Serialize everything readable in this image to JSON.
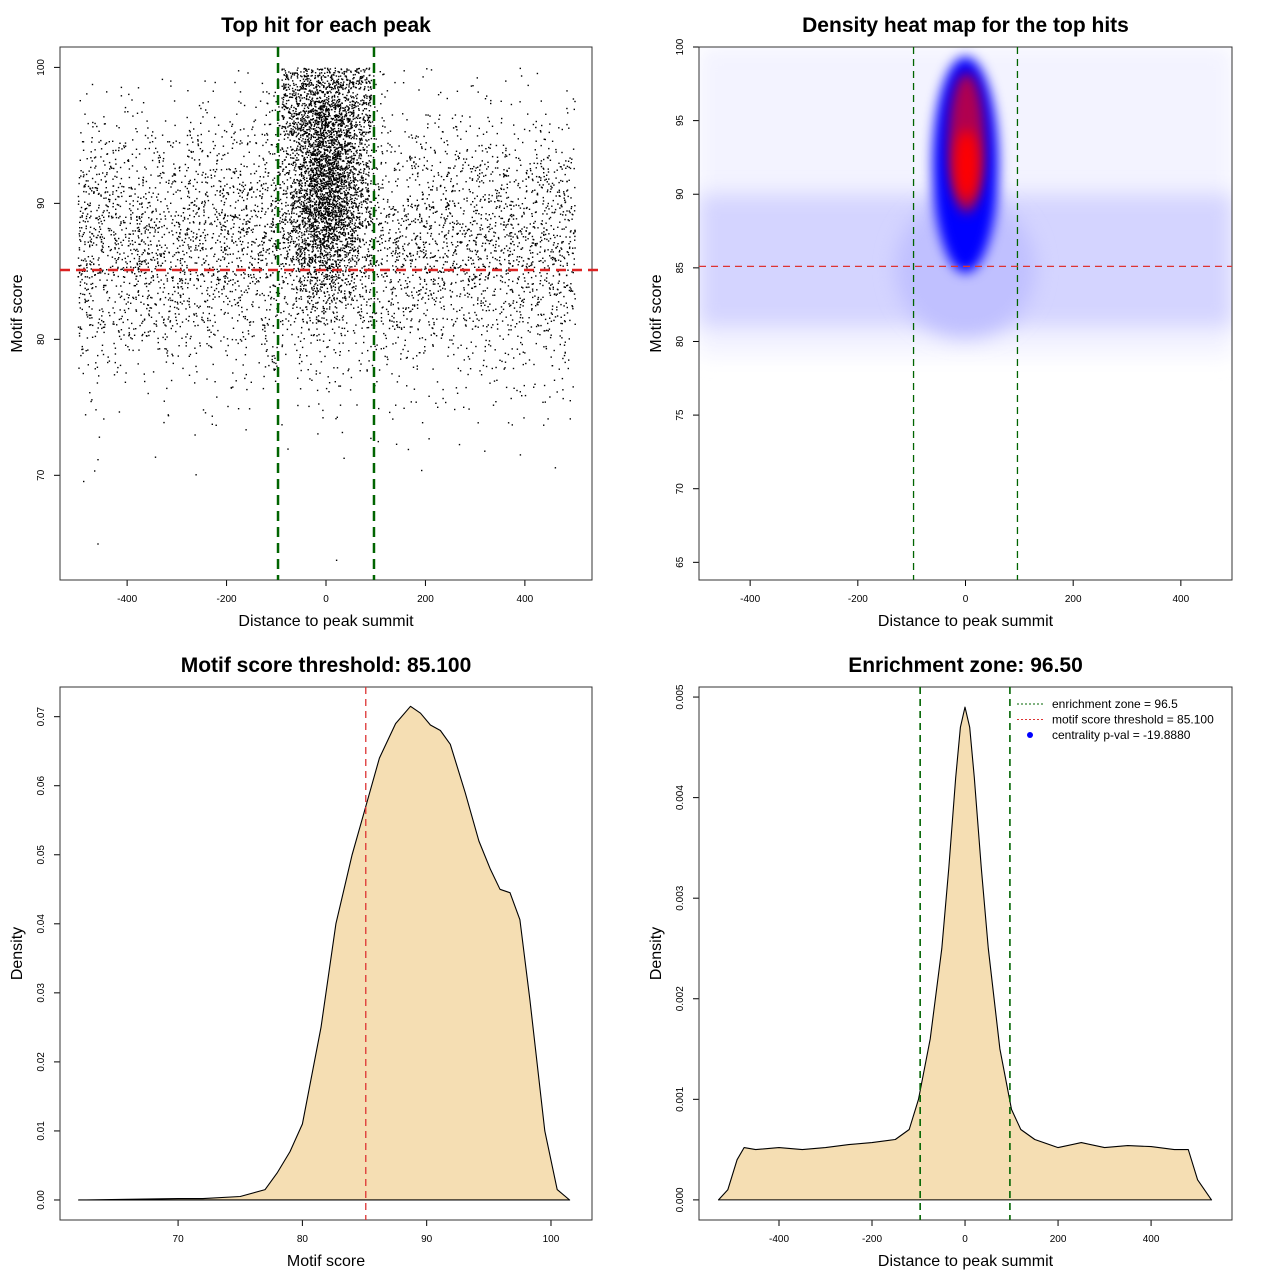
{
  "chart_data": [
    {
      "type": "scatter",
      "title": "Top hit for each peak",
      "xlabel": "Distance to peak summit",
      "ylabel": "Motif score",
      "xlim": [
        -535,
        535
      ],
      "ylim": [
        62.3,
        101.5
      ],
      "xticks": [
        -400,
        -200,
        0,
        200,
        400
      ],
      "yticks": [
        70,
        80,
        90,
        100
      ],
      "vlines": {
        "values": [
          -96.5,
          96.5
        ],
        "color": "#006400",
        "style": "dashed"
      },
      "hline": {
        "value": 85.1,
        "color": "#dd2222",
        "style": "dashed"
      },
      "point_color": "#000000",
      "grid": false
    },
    {
      "type": "heatmap",
      "title": "Density heat map for the top hits",
      "xlabel": "Distance to peak summit",
      "ylabel": "Motif score",
      "xlim": [
        -495,
        495
      ],
      "ylim": [
        63.8,
        100
      ],
      "xticks": [
        -400,
        -200,
        0,
        200,
        400
      ],
      "yticks": [
        65,
        70,
        75,
        80,
        85,
        90,
        95,
        100
      ],
      "vlines": {
        "values": [
          -96.5,
          96.5
        ],
        "color": "#006400",
        "style": "dashed"
      },
      "hline": {
        "value": 85.1,
        "color": "#dd3333",
        "style": "dashed"
      },
      "colors": [
        "#ffffff",
        "#0000ff",
        "#ff0000"
      ],
      "hotspot": {
        "x": 0,
        "y": 92
      },
      "grid": false
    },
    {
      "type": "area",
      "title": "Motif score threshold: 85.100",
      "xlabel": "Motif score",
      "ylabel": "Density",
      "xlim": [
        60.5,
        103.3
      ],
      "ylim": [
        -0.0029,
        0.0743
      ],
      "xticks": [
        70,
        80,
        90,
        100
      ],
      "yticks": [
        "0.00",
        "0.01",
        "0.02",
        "0.03",
        "0.04",
        "0.05",
        "0.06",
        "0.07"
      ],
      "fill": "#f5deb3",
      "vline": {
        "value": 85.1,
        "color": "#dd3333",
        "style": "dashed"
      },
      "x": [
        62,
        66,
        70,
        72,
        75,
        77,
        78,
        79,
        80,
        81.5,
        82.7,
        84,
        85.1,
        86.2,
        87.5,
        88.7,
        89.5,
        90.3,
        91.1,
        91.9,
        93.1,
        94.2,
        95.1,
        95.9,
        96.7,
        97.5,
        98.3,
        99.5,
        100.5,
        101.5
      ],
      "y": [
        0,
        0.0001,
        0.0002,
        0.0002,
        0.0005,
        0.0015,
        0.004,
        0.007,
        0.011,
        0.025,
        0.04,
        0.05,
        0.057,
        0.064,
        0.069,
        0.0715,
        0.0705,
        0.0688,
        0.068,
        0.066,
        0.059,
        0.052,
        0.048,
        0.045,
        0.0445,
        0.0406,
        0.029,
        0.01,
        0.0015,
        0
      ],
      "grid": false
    },
    {
      "type": "area",
      "title": "Enrichment zone: 96.50",
      "xlabel": "Distance to peak summit",
      "ylabel": "Density",
      "xlim": [
        -572,
        574
      ],
      "ylim": [
        -0.0002,
        0.0051
      ],
      "xticks": [
        -400,
        -200,
        0,
        200,
        400
      ],
      "yticks": [
        "0.000",
        "0.001",
        "0.002",
        "0.003",
        "0.004",
        "0.005"
      ],
      "fill": "#f5deb3",
      "vlines": {
        "values": [
          -96.5,
          96.5
        ],
        "color": "#006400",
        "style": "dashed"
      },
      "x": [
        -530,
        -510,
        -490,
        -475,
        -450,
        -400,
        -350,
        -300,
        -250,
        -200,
        -150,
        -120,
        -100,
        -75,
        -50,
        -35,
        -20,
        -10,
        0,
        10,
        20,
        35,
        50,
        75,
        100,
        120,
        150,
        200,
        250,
        300,
        350,
        400,
        450,
        480,
        500,
        530
      ],
      "y": [
        0,
        0.0001,
        0.0004,
        0.00052,
        0.0005,
        0.00052,
        0.0005,
        0.00052,
        0.00055,
        0.00057,
        0.0006,
        0.0007,
        0.001,
        0.0016,
        0.0025,
        0.0033,
        0.0042,
        0.0047,
        0.0049,
        0.0047,
        0.0042,
        0.0033,
        0.0025,
        0.0015,
        0.0009,
        0.0007,
        0.0006,
        0.00052,
        0.00057,
        0.00052,
        0.00054,
        0.00053,
        0.0005,
        0.0005,
        0.0002,
        0
      ],
      "legend": {
        "position": "top-right",
        "entries": [
          {
            "label": "enrichment zone = 96.5",
            "color": "#006400",
            "symbol": "dotted-line"
          },
          {
            "label": "motif score threshold = 85.100",
            "color": "#dd3333",
            "symbol": "dotted-line"
          },
          {
            "label": "centrality p-val = -19.8880",
            "color": "#0000ff",
            "symbol": "point"
          }
        ]
      },
      "grid": false
    }
  ]
}
